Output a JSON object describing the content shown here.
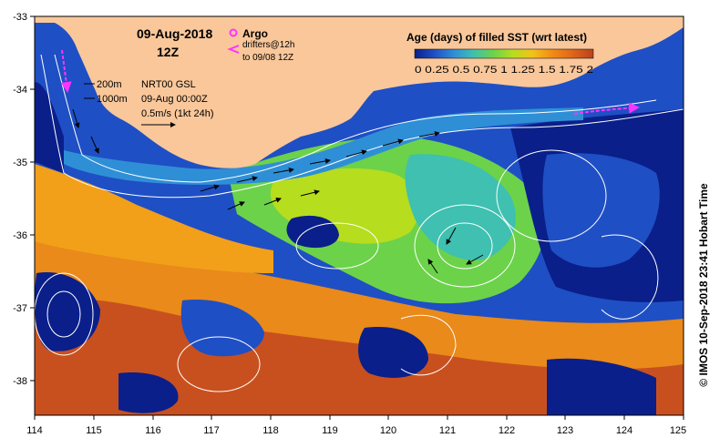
{
  "map": {
    "title_date": "09-Aug-2018",
    "title_hour": "12Z",
    "x_ticks": [
      "114",
      "115",
      "116",
      "117",
      "118",
      "119",
      "120",
      "121",
      "122",
      "123",
      "124",
      "125"
    ],
    "y_ticks": [
      "-33",
      "-34",
      "-35",
      "-36",
      "-37",
      "-38"
    ],
    "x_range": [
      114,
      125
    ],
    "y_range": [
      -38.5,
      -33
    ],
    "land_color": "#f9c79a",
    "ocean_palette": [
      "#0a1f8a",
      "#1f4fc4",
      "#2f8fd6",
      "#3fc0b0",
      "#6cd24a",
      "#b6dd1e",
      "#f2c21b",
      "#f28c16",
      "#e0661a",
      "#b8421f"
    ]
  },
  "legend_argo": {
    "label": "Argo",
    "marker_color": "#ff33ff"
  },
  "legend_drifters": {
    "label": "drifters@12h",
    "sublabel": "to 09/08 12Z",
    "marker_color": "#ff33ff"
  },
  "legend_contours": {
    "line1": "200m",
    "line2": "1000m",
    "product": "NRT00 GSL",
    "date": "09-Aug 00:00Z",
    "scale": "0.5m/s (1kt 24h)"
  },
  "colorbar": {
    "title": "Age (days) of filled SST (wrt latest)",
    "ticks": [
      "0",
      "0.25",
      "0.5",
      "0.75",
      "1",
      "1.25",
      "1.5",
      "1.75",
      "2"
    ],
    "tick_text": "0  0.25 0.5 0.75  1  1.25 1.5 1.75  2",
    "colors": [
      "#0a1f8a",
      "#1f4fc4",
      "#2f8fd6",
      "#3fc0b0",
      "#6cd24a",
      "#b6dd1e",
      "#f2c21b",
      "#f28c16",
      "#e0661a",
      "#b8421f"
    ]
  },
  "credit": "© IMOS 10-Sep-2018 23:41 Hobart Time"
}
